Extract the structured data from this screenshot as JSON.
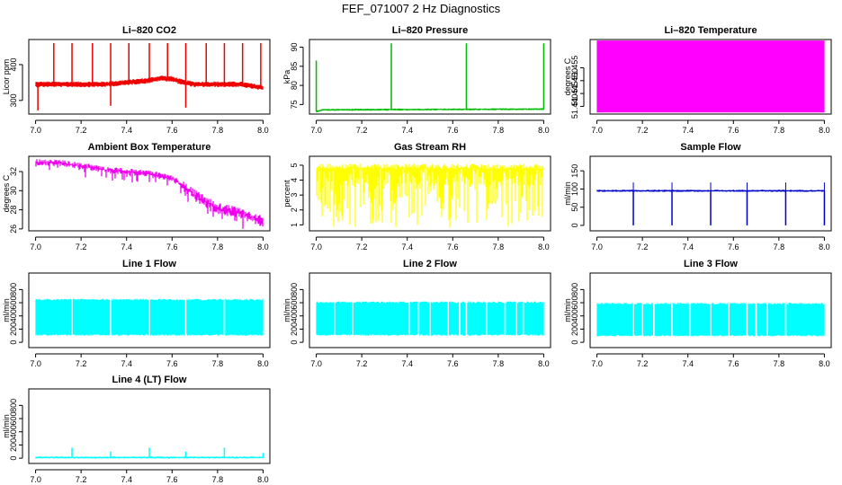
{
  "figure": {
    "title": "FEF_071007  2 Hz Diagnostics"
  },
  "chart_data": [
    {
      "type": "line",
      "title": "Li–820 CO2",
      "xlabel": "",
      "ylabel": "Licor ppm",
      "xlim": [
        6.97,
        8.03
      ],
      "ylim": [
        262,
        470
      ],
      "xticks": [
        "7.0",
        "7.2",
        "7.4",
        "7.6",
        "7.8",
        "8.0"
      ],
      "yticks": [
        "300",
        "400"
      ],
      "color": "#ee0000",
      "series": [
        {
          "x": [
            7.0,
            7.1,
            7.2,
            7.3,
            7.4,
            7.5,
            7.55,
            7.6,
            7.65,
            7.7,
            7.8,
            7.9,
            8.0
          ],
          "values": [
            345,
            345,
            345,
            345,
            350,
            356,
            362,
            360,
            350,
            345,
            345,
            345,
            335
          ]
        }
      ],
      "spikes_up_x": [
        7.08,
        7.16,
        7.25,
        7.33,
        7.41,
        7.5,
        7.58,
        7.66,
        7.75,
        7.83,
        7.91,
        7.99
      ],
      "spikes_up_to": 460,
      "spikes_down": [
        {
          "x": 7.01,
          "to": 272
        },
        {
          "x": 7.33,
          "to": 285
        },
        {
          "x": 7.66,
          "to": 280
        }
      ]
    },
    {
      "type": "line",
      "title": "Li–820 Pressure",
      "xlabel": "",
      "ylabel": "kPa",
      "xlim": [
        6.97,
        8.03
      ],
      "ylim": [
        72.5,
        92
      ],
      "xticks": [
        "7.0",
        "7.2",
        "7.4",
        "7.6",
        "7.8",
        "8.0"
      ],
      "yticks": [
        "75",
        "80",
        "85",
        "90"
      ],
      "color": "#00bb00",
      "series": [
        {
          "x": [
            7.0,
            7.03,
            8.0
          ],
          "values": [
            73.2,
            73.6,
            73.8
          ]
        }
      ],
      "spikes_up": [
        {
          "x": 7.0,
          "to": 86.5
        },
        {
          "x": 7.33,
          "to": 91
        },
        {
          "x": 7.66,
          "to": 91
        },
        {
          "x": 8.0,
          "to": 91
        }
      ]
    },
    {
      "type": "area",
      "title": "Li–820 Temperature",
      "xlabel": "",
      "ylabel": "degrees C",
      "xlim": [
        6.97,
        8.03
      ],
      "ylim": [
        51.437,
        51.466
      ],
      "xticks": [
        "7.0",
        "7.2",
        "7.4",
        "7.6",
        "7.8",
        "8.0"
      ],
      "yticks": [
        "51.440",
        "51.445",
        "51.450",
        "51.455"
      ],
      "color": "#ff00ff",
      "band": {
        "x": [
          7.0,
          8.0
        ],
        "low": 51.4376,
        "high": 51.4656
      }
    },
    {
      "type": "line",
      "title": "Ambient Box Temperature",
      "xlabel": "",
      "ylabel": "degrees C",
      "xlim": [
        6.97,
        8.03
      ],
      "ylim": [
        25.8,
        33.6
      ],
      "xticks": [
        "7.0",
        "7.2",
        "7.4",
        "7.6",
        "7.8",
        "8.0"
      ],
      "yticks": [
        "26",
        "28",
        "30",
        "32"
      ],
      "color": "#ee00ee",
      "series": [
        {
          "x": [
            7.0,
            7.1,
            7.2,
            7.3,
            7.4,
            7.5,
            7.6,
            7.65,
            7.7,
            7.75,
            7.8,
            7.9,
            8.0
          ],
          "values": [
            33.0,
            32.9,
            32.6,
            32.2,
            32.0,
            31.8,
            31.3,
            30.5,
            29.5,
            28.8,
            28.2,
            27.6,
            26.8
          ]
        }
      ]
    },
    {
      "type": "area",
      "title": "Gas Stream RH",
      "xlabel": "",
      "ylabel": "percent",
      "xlim": [
        6.97,
        8.03
      ],
      "ylim": [
        0.6,
        5.6
      ],
      "xticks": [
        "7.0",
        "7.2",
        "7.4",
        "7.6",
        "7.8",
        "8.0"
      ],
      "yticks": [
        "1",
        "2",
        "3",
        "4",
        "5"
      ],
      "color": "#ffff00",
      "band": {
        "x": [
          7.0,
          8.0
        ],
        "low": 0.8,
        "high": 5.1
      }
    },
    {
      "type": "line",
      "title": "Sample Flow",
      "xlabel": "",
      "ylabel": "ml/min",
      "xlim": [
        6.97,
        8.03
      ],
      "ylim": [
        -15,
        190
      ],
      "xticks": [
        "7.0",
        "7.2",
        "7.4",
        "7.6",
        "7.8",
        "8.0"
      ],
      "yticks": [
        "0",
        "50",
        "100",
        "150"
      ],
      "color": "#0000cc",
      "series": [
        {
          "x": [
            7.0,
            8.0
          ],
          "values": [
            95,
            95
          ]
        }
      ],
      "spikes_down_x": [
        7.16,
        7.33,
        7.5,
        7.66,
        7.83,
        8.0
      ],
      "spikes_down_to": 0,
      "spikes_up_to": 118
    },
    {
      "type": "area",
      "title": "Line 1 Flow",
      "xlabel": "",
      "ylabel": "ml/min",
      "xlim": [
        6.97,
        8.03
      ],
      "ylim": [
        -80,
        1050
      ],
      "xticks": [
        "7.0",
        "7.2",
        "7.4",
        "7.6",
        "7.8",
        "8.0"
      ],
      "yticks": [
        "0",
        "200",
        "400",
        "600",
        "800"
      ],
      "color": "#00ffff",
      "band": {
        "x": [
          7.0,
          8.0
        ],
        "low": 100,
        "high": 660
      },
      "gaps_x": [
        7.16,
        7.33,
        7.5,
        7.66,
        7.83
      ]
    },
    {
      "type": "area",
      "title": "Line 2 Flow",
      "xlabel": "",
      "ylabel": "ml/min",
      "xlim": [
        6.97,
        8.03
      ],
      "ylim": [
        -80,
        1050
      ],
      "xticks": [
        "7.0",
        "7.2",
        "7.4",
        "7.6",
        "7.8",
        "8.0"
      ],
      "yticks": [
        "0",
        "200",
        "400",
        "600",
        "800"
      ],
      "color": "#00ffff",
      "band": {
        "x": [
          7.0,
          8.0
        ],
        "low": 100,
        "high": 620
      },
      "gaps_x": [
        7.08,
        7.16,
        7.41,
        7.45,
        7.5,
        7.58,
        7.63,
        7.66,
        7.75,
        7.83,
        7.88,
        7.91
      ]
    },
    {
      "type": "area",
      "title": "Line 3 Flow",
      "xlabel": "",
      "ylabel": "ml/min",
      "xlim": [
        6.97,
        8.03
      ],
      "ylim": [
        -80,
        1050
      ],
      "xticks": [
        "7.0",
        "7.2",
        "7.4",
        "7.6",
        "7.8",
        "8.0"
      ],
      "yticks": [
        "0",
        "200",
        "400",
        "600",
        "800"
      ],
      "color": "#00ffff",
      "band": {
        "x": [
          7.0,
          8.0
        ],
        "low": 90,
        "high": 600
      },
      "gaps_x": [
        7.16,
        7.2,
        7.25,
        7.33,
        7.41,
        7.5,
        7.58,
        7.66,
        7.7,
        7.75,
        7.83
      ]
    },
    {
      "type": "line",
      "title": "Line 4 (LT) Flow",
      "xlabel": "",
      "ylabel": "ml/min",
      "xlim": [
        6.97,
        8.03
      ],
      "ylim": [
        -80,
        1050
      ],
      "xticks": [
        "7.0",
        "7.2",
        "7.4",
        "7.6",
        "7.8",
        "8.0"
      ],
      "yticks": [
        "0",
        "200",
        "400",
        "600",
        "800"
      ],
      "color": "#00ffff",
      "series": [
        {
          "x": [
            7.0,
            8.0
          ],
          "values": [
            10,
            10
          ]
        }
      ],
      "spikes_up": [
        {
          "x": 7.16,
          "to": 160
        },
        {
          "x": 7.33,
          "to": 100
        },
        {
          "x": 7.5,
          "to": 160
        },
        {
          "x": 7.66,
          "to": 100
        },
        {
          "x": 7.83,
          "to": 160
        },
        {
          "x": 8.0,
          "to": 80
        }
      ]
    }
  ]
}
